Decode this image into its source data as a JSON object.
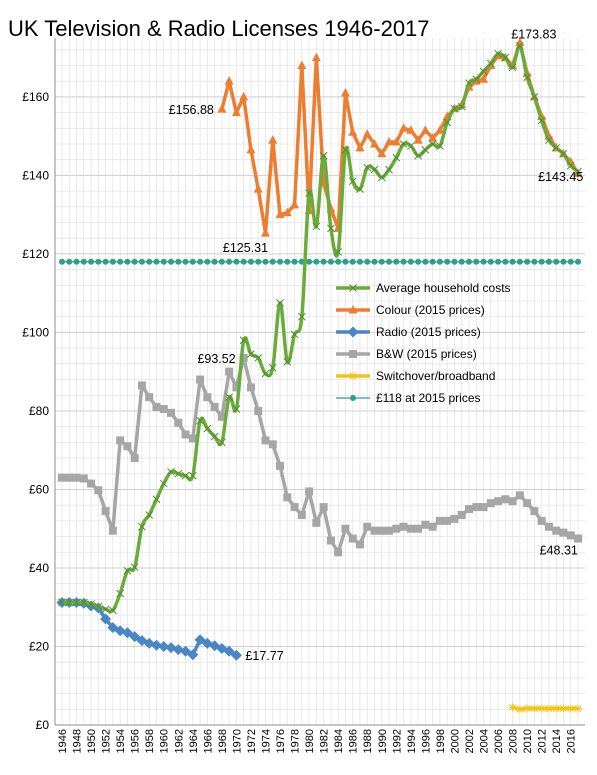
{
  "chart_data": {
    "type": "line",
    "title": "UK Television & Radio Licenses 1946-2017",
    "xlabel": "",
    "ylabel": "",
    "ylim": [
      0,
      175
    ],
    "xlim": [
      1946,
      2017
    ],
    "yticks": [
      0,
      20,
      40,
      60,
      80,
      100,
      120,
      140,
      160
    ],
    "ytick_labels": [
      "£0",
      "£20",
      "£40",
      "£60",
      "£80",
      "£100",
      "£120",
      "£140",
      "£160"
    ],
    "xticks": [
      1946,
      1948,
      1950,
      1952,
      1954,
      1956,
      1958,
      1960,
      1962,
      1964,
      1966,
      1968,
      1970,
      1972,
      1974,
      1976,
      1978,
      1980,
      1982,
      1984,
      1986,
      1988,
      1990,
      1992,
      1994,
      1996,
      1998,
      2000,
      2002,
      2004,
      2006,
      2008,
      2010,
      2012,
      2014,
      2016
    ],
    "grid": true,
    "legend_position": "center-right",
    "series": [
      {
        "name": "Average household costs",
        "color": "#6aab3c",
        "marker": "x",
        "smooth": true,
        "points": [
          [
            1946,
            31.3
          ],
          [
            1947,
            31.2
          ],
          [
            1948,
            31.2
          ],
          [
            1949,
            31.2
          ],
          [
            1950,
            30.8
          ],
          [
            1951,
            30.2
          ],
          [
            1952,
            29.5
          ],
          [
            1953,
            29.2
          ],
          [
            1954,
            33.5
          ],
          [
            1955,
            39.3
          ],
          [
            1956,
            40.2
          ],
          [
            1957,
            50.5
          ],
          [
            1958,
            53.5
          ],
          [
            1959,
            57.5
          ],
          [
            1960,
            61.5
          ],
          [
            1961,
            64.5
          ],
          [
            1962,
            64.0
          ],
          [
            1963,
            63.5
          ],
          [
            1964,
            63.5
          ],
          [
            1965,
            77.5
          ],
          [
            1966,
            75.5
          ],
          [
            1967,
            73.5
          ],
          [
            1968,
            72.0
          ],
          [
            1969,
            83.5
          ],
          [
            1970,
            80.5
          ],
          [
            1971,
            98.0
          ],
          [
            1972,
            94.5
          ],
          [
            1973,
            93.5
          ],
          [
            1974,
            89.5
          ],
          [
            1975,
            91.0
          ],
          [
            1976,
            107.5
          ],
          [
            1977,
            92.5
          ],
          [
            1978,
            99.5
          ],
          [
            1979,
            104.0
          ],
          [
            1980,
            135.5
          ],
          [
            1981,
            127.0
          ],
          [
            1982,
            145.0
          ],
          [
            1983,
            126.5
          ],
          [
            1984,
            120.5
          ],
          [
            1985,
            146.5
          ],
          [
            1986,
            138.5
          ],
          [
            1987,
            136.5
          ],
          [
            1988,
            142.0
          ],
          [
            1989,
            141.5
          ],
          [
            1990,
            139.5
          ],
          [
            1991,
            141.5
          ],
          [
            1992,
            144.5
          ],
          [
            1993,
            148.0
          ],
          [
            1994,
            147.5
          ],
          [
            1995,
            145.0
          ],
          [
            1996,
            146.5
          ],
          [
            1997,
            148.0
          ],
          [
            1998,
            147.5
          ],
          [
            1999,
            153.5
          ],
          [
            2000,
            157.0
          ],
          [
            2001,
            157.5
          ],
          [
            2002,
            163.5
          ],
          [
            2003,
            164.5
          ],
          [
            2004,
            166.5
          ],
          [
            2005,
            168.5
          ],
          [
            2006,
            171.0
          ],
          [
            2007,
            170.0
          ],
          [
            2008,
            167.5
          ],
          [
            2009,
            173.0
          ],
          [
            2010,
            165.0
          ],
          [
            2011,
            160.0
          ],
          [
            2012,
            154.0
          ],
          [
            2013,
            149.0
          ],
          [
            2014,
            147.0
          ],
          [
            2015,
            145.5
          ],
          [
            2016,
            142.5
          ],
          [
            2017,
            141.0
          ]
        ]
      },
      {
        "name": "Colour (2015 prices)",
        "color": "#ed7d31",
        "marker": "triangle",
        "smooth": false,
        "points": [
          [
            1968,
            156.88
          ],
          [
            1969,
            164.0
          ],
          [
            1970,
            156.0
          ],
          [
            1971,
            160.0
          ],
          [
            1972,
            146.5
          ],
          [
            1973,
            136.5
          ],
          [
            1974,
            125.31
          ],
          [
            1975,
            149.0
          ],
          [
            1976,
            130.0
          ],
          [
            1977,
            130.5
          ],
          [
            1978,
            132.5
          ],
          [
            1979,
            168.0
          ],
          [
            1980,
            131.0
          ],
          [
            1981,
            170.0
          ],
          [
            1982,
            138.0
          ],
          [
            1983,
            131.5
          ],
          [
            1984,
            126.5
          ],
          [
            1985,
            161.0
          ],
          [
            1986,
            151.0
          ],
          [
            1987,
            147.0
          ],
          [
            1988,
            150.5
          ],
          [
            1989,
            148.0
          ],
          [
            1990,
            145.5
          ],
          [
            1991,
            148.5
          ],
          [
            1992,
            148.5
          ],
          [
            1993,
            152.0
          ],
          [
            1994,
            151.5
          ],
          [
            1995,
            149.0
          ],
          [
            1996,
            151.5
          ],
          [
            1997,
            149.5
          ],
          [
            1998,
            151.5
          ],
          [
            1999,
            155.0
          ],
          [
            2000,
            157.0
          ],
          [
            2001,
            158.0
          ],
          [
            2002,
            162.5
          ],
          [
            2003,
            164.0
          ],
          [
            2004,
            164.5
          ],
          [
            2005,
            168.0
          ],
          [
            2006,
            170.5
          ],
          [
            2007,
            170.0
          ],
          [
            2008,
            168.0
          ],
          [
            2009,
            173.83
          ],
          [
            2010,
            166.0
          ],
          [
            2011,
            160.0
          ],
          [
            2012,
            155.0
          ],
          [
            2013,
            150.0
          ],
          [
            2014,
            147.0
          ],
          [
            2015,
            145.5
          ],
          [
            2016,
            143.45
          ],
          [
            2017,
            140.5
          ]
        ]
      },
      {
        "name": "Radio (2015 prices)",
        "color": "#4a86c5",
        "marker": "diamond",
        "smooth": false,
        "points": [
          [
            1946,
            31.2
          ],
          [
            1947,
            31.2
          ],
          [
            1948,
            31.2
          ],
          [
            1949,
            31.0
          ],
          [
            1950,
            30.3
          ],
          [
            1951,
            29.8
          ],
          [
            1952,
            27.0
          ],
          [
            1953,
            24.8
          ],
          [
            1954,
            24.0
          ],
          [
            1955,
            23.5
          ],
          [
            1956,
            22.5
          ],
          [
            1957,
            21.5
          ],
          [
            1958,
            20.8
          ],
          [
            1959,
            20.3
          ],
          [
            1960,
            20.0
          ],
          [
            1961,
            19.7
          ],
          [
            1962,
            19.2
          ],
          [
            1963,
            18.8
          ],
          [
            1964,
            17.9
          ],
          [
            1965,
            21.7
          ],
          [
            1966,
            20.8
          ],
          [
            1967,
            20.2
          ],
          [
            1968,
            19.5
          ],
          [
            1969,
            18.8
          ],
          [
            1970,
            17.77
          ]
        ]
      },
      {
        "name": "B&W (2015 prices)",
        "color": "#a6a6a6",
        "marker": "square",
        "smooth": false,
        "points": [
          [
            1946,
            63.0
          ],
          [
            1947,
            63.0
          ],
          [
            1948,
            63.0
          ],
          [
            1949,
            62.8
          ],
          [
            1950,
            61.5
          ],
          [
            1951,
            59.8
          ],
          [
            1952,
            54.5
          ],
          [
            1953,
            49.5
          ],
          [
            1954,
            72.5
          ],
          [
            1955,
            71.0
          ],
          [
            1956,
            68.0
          ],
          [
            1957,
            86.5
          ],
          [
            1958,
            83.5
          ],
          [
            1959,
            81.0
          ],
          [
            1960,
            80.5
          ],
          [
            1961,
            79.5
          ],
          [
            1962,
            77.0
          ],
          [
            1963,
            74.0
          ],
          [
            1964,
            73.0
          ],
          [
            1965,
            88.0
          ],
          [
            1966,
            83.5
          ],
          [
            1967,
            81.0
          ],
          [
            1968,
            78.5
          ],
          [
            1969,
            90.0
          ],
          [
            1970,
            86.0
          ],
          [
            1971,
            93.52
          ],
          [
            1972,
            86.0
          ],
          [
            1973,
            80.0
          ],
          [
            1974,
            72.5
          ],
          [
            1975,
            71.5
          ],
          [
            1976,
            66.0
          ],
          [
            1977,
            58.0
          ],
          [
            1978,
            55.5
          ],
          [
            1979,
            53.5
          ],
          [
            1980,
            59.5
          ],
          [
            1981,
            51.5
          ],
          [
            1982,
            55.5
          ],
          [
            1983,
            47.0
          ],
          [
            1984,
            44.0
          ],
          [
            1985,
            50.0
          ],
          [
            1986,
            47.5
          ],
          [
            1987,
            46.0
          ],
          [
            1988,
            50.5
          ],
          [
            1989,
            49.5
          ],
          [
            1990,
            49.5
          ],
          [
            1991,
            49.5
          ],
          [
            1992,
            50.0
          ],
          [
            1993,
            50.5
          ],
          [
            1994,
            50.0
          ],
          [
            1995,
            50.0
          ],
          [
            1996,
            51.0
          ],
          [
            1997,
            50.5
          ],
          [
            1998,
            52.0
          ],
          [
            1999,
            52.0
          ],
          [
            2000,
            52.5
          ],
          [
            2001,
            53.5
          ],
          [
            2002,
            55.0
          ],
          [
            2003,
            55.5
          ],
          [
            2004,
            55.5
          ],
          [
            2005,
            56.5
          ],
          [
            2006,
            57.0
          ],
          [
            2007,
            57.5
          ],
          [
            2008,
            57.0
          ],
          [
            2009,
            58.5
          ],
          [
            2010,
            56.5
          ],
          [
            2011,
            54.5
          ],
          [
            2012,
            52.0
          ],
          [
            2013,
            50.5
          ],
          [
            2014,
            49.5
          ],
          [
            2015,
            49.0
          ],
          [
            2016,
            48.31
          ],
          [
            2017,
            47.5
          ]
        ]
      },
      {
        "name": "Switchover/broadband",
        "color": "#f0c419",
        "marker": "star",
        "smooth": false,
        "points": [
          [
            2008,
            4.5
          ],
          [
            2009,
            4.0
          ],
          [
            2010,
            4.2
          ],
          [
            2011,
            4.2
          ],
          [
            2012,
            4.2
          ],
          [
            2013,
            4.2
          ],
          [
            2014,
            4.2
          ],
          [
            2015,
            4.2
          ],
          [
            2016,
            4.2
          ],
          [
            2017,
            4.2
          ]
        ]
      },
      {
        "name": "£118 at 2015 prices",
        "color": "#2ca08a",
        "marker": "circle",
        "smooth": false,
        "constant": 118,
        "x_from": 1946,
        "x_to": 2017
      }
    ],
    "annotations": [
      {
        "text": "£156.88",
        "x": 1968,
        "y": 156.88,
        "anchor": "left"
      },
      {
        "text": "£125.31",
        "x": 1974,
        "y": 125.31,
        "anchor": "below"
      },
      {
        "text": "£93.52",
        "x": 1971,
        "y": 93.52,
        "anchor": "left"
      },
      {
        "text": "£17.77",
        "x": 1970,
        "y": 17.77,
        "anchor": "right"
      },
      {
        "text": "£173.83",
        "x": 2009,
        "y": 173.83,
        "anchor": "above"
      },
      {
        "text": "£143.45",
        "x": 2016,
        "y": 143.45,
        "anchor": "below"
      },
      {
        "text": "£48.31",
        "x": 2016,
        "y": 48.31,
        "anchor": "below"
      }
    ]
  }
}
